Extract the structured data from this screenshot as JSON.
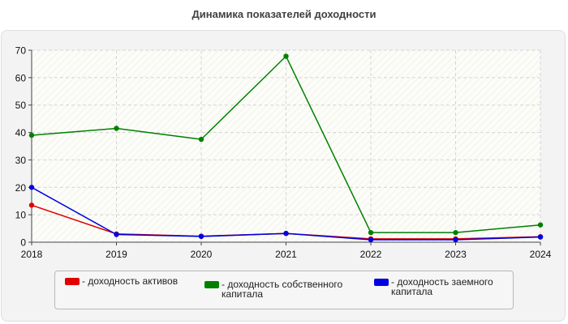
{
  "chart_data": {
    "type": "line",
    "title": "Динамика показателей доходности",
    "xlabel": "",
    "ylabel": "",
    "categories": [
      "2018",
      "2019",
      "2020",
      "2021",
      "2022",
      "2023",
      "2024"
    ],
    "ylim": [
      0,
      70
    ],
    "yticks": [
      0,
      10,
      20,
      30,
      40,
      50,
      60,
      70
    ],
    "grid": true,
    "legend_position": "bottom",
    "series": [
      {
        "name": "- доходность активов",
        "color": "#e00000",
        "values": [
          13.5,
          3.0,
          2.2,
          3.2,
          1.2,
          1.2,
          2.0
        ]
      },
      {
        "name": "- доходность собственного капитала",
        "color": "#008000",
        "values": [
          39.0,
          41.5,
          37.5,
          67.8,
          3.5,
          3.5,
          6.3
        ]
      },
      {
        "name": "- доходность заемного капитала",
        "color": "#0000e0",
        "values": [
          20.0,
          2.8,
          2.1,
          3.2,
          0.9,
          0.9,
          1.9
        ]
      }
    ]
  }
}
